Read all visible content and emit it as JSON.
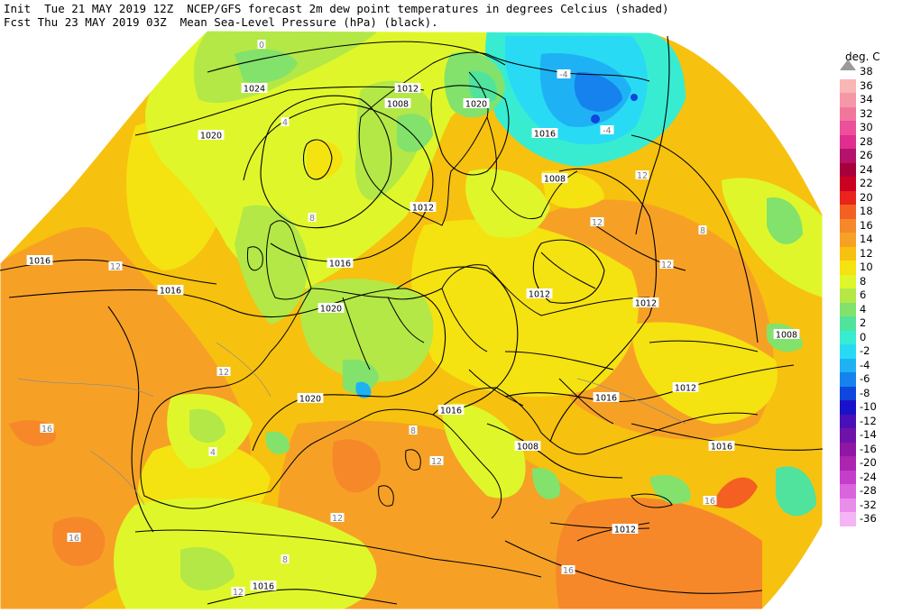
{
  "header": {
    "line1": "Init  Tue 21 MAY 2019 12Z  NCEP/GFS forecast 2m dew point temperatures in degrees Celcius (shaded)",
    "line2": "Fcst Thu 23 MAY 2019 03Z  Mean Sea-Level Pressure (hPa) (black)."
  },
  "legend": {
    "unit": "deg. C",
    "levels": [
      {
        "label": "38",
        "color": "#ffffff"
      },
      {
        "label": "36",
        "color": "#f9b6b4"
      },
      {
        "label": "34",
        "color": "#f597a7"
      },
      {
        "label": "32",
        "color": "#f0779b"
      },
      {
        "label": "30",
        "color": "#ed4f98"
      },
      {
        "label": "28",
        "color": "#e02d8e"
      },
      {
        "label": "26",
        "color": "#b5126b"
      },
      {
        "label": "24",
        "color": "#a8003a"
      },
      {
        "label": "22",
        "color": "#cc0020"
      },
      {
        "label": "20",
        "color": "#e8241d"
      },
      {
        "label": "18",
        "color": "#f36021"
      },
      {
        "label": "16",
        "color": "#f6882a"
      },
      {
        "label": "14",
        "color": "#f6a126"
      },
      {
        "label": "12",
        "color": "#f7c10f"
      },
      {
        "label": "10",
        "color": "#f5e211"
      },
      {
        "label": "8",
        "color": "#dff72a"
      },
      {
        "label": "6",
        "color": "#b3e847"
      },
      {
        "label": "4",
        "color": "#82e26b"
      },
      {
        "label": "2",
        "color": "#4fe39e"
      },
      {
        "label": "0",
        "color": "#38ecd2"
      },
      {
        "label": "-2",
        "color": "#29daf5"
      },
      {
        "label": "-4",
        "color": "#1eb2f4"
      },
      {
        "label": "-6",
        "color": "#1682ee"
      },
      {
        "label": "-8",
        "color": "#0f46dd"
      },
      {
        "label": "-10",
        "color": "#1a12c9"
      },
      {
        "label": "-12",
        "color": "#4a10b8"
      },
      {
        "label": "-14",
        "color": "#6f12a9"
      },
      {
        "label": "-16",
        "color": "#8e17a4"
      },
      {
        "label": "-20",
        "color": "#ad24b1"
      },
      {
        "label": "-24",
        "color": "#c43fc9"
      },
      {
        "label": "-28",
        "color": "#d964dc"
      },
      {
        "label": "-32",
        "color": "#e98cea"
      },
      {
        "label": "-36",
        "color": "#f5b5f4"
      }
    ]
  },
  "isobar_labels": [
    "1024",
    "1020",
    "1016",
    "1012",
    "1008",
    "1020",
    "1016",
    "1012",
    "1008",
    "1016",
    "1020",
    "1020",
    "1016",
    "1012",
    "1012",
    "1008",
    "1008",
    "1016",
    "1016",
    "1012",
    "1016",
    "1012",
    "1016"
  ],
  "dewpoint_labels": [
    "0",
    "4",
    "8",
    "12",
    "16",
    "-4",
    "-4",
    "12",
    "12",
    "8",
    "12",
    "12",
    "16",
    "16",
    "12",
    "4",
    "8",
    "12",
    "12",
    "8",
    "16"
  ]
}
